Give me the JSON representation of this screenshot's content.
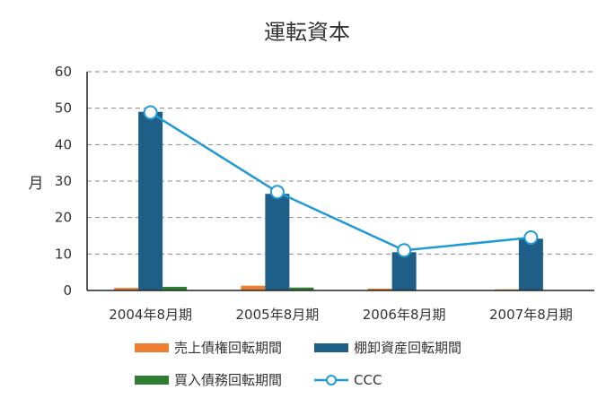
{
  "chart_data": {
    "type": "bar",
    "title": "運転資本",
    "xlabel": "",
    "ylabel": "月",
    "categories": [
      "2004年8月期",
      "2005年8月期",
      "2006年8月期",
      "2007年8月期"
    ],
    "ylim": [
      0,
      60
    ],
    "yticks": [
      0,
      10,
      20,
      30,
      40,
      50,
      60
    ],
    "grid": true,
    "legend_position": "bottom",
    "series": [
      {
        "name": "売上債権回転期間",
        "type": "bar",
        "color": "#ED7D31",
        "values": [
          0.7,
          1.3,
          0.5,
          0.3
        ]
      },
      {
        "name": "棚卸資産回転期間",
        "type": "bar",
        "color": "#1F5F87",
        "values": [
          49,
          26.5,
          10.5,
          14.2
        ]
      },
      {
        "name": "買入債務回転期間",
        "type": "bar",
        "color": "#2E7D32",
        "values": [
          1.0,
          0.8,
          0.0,
          0.0
        ]
      },
      {
        "name": "CCC",
        "type": "line",
        "color": "#1F9AD6",
        "values": [
          48.8,
          27.0,
          11.0,
          14.5
        ]
      }
    ]
  }
}
